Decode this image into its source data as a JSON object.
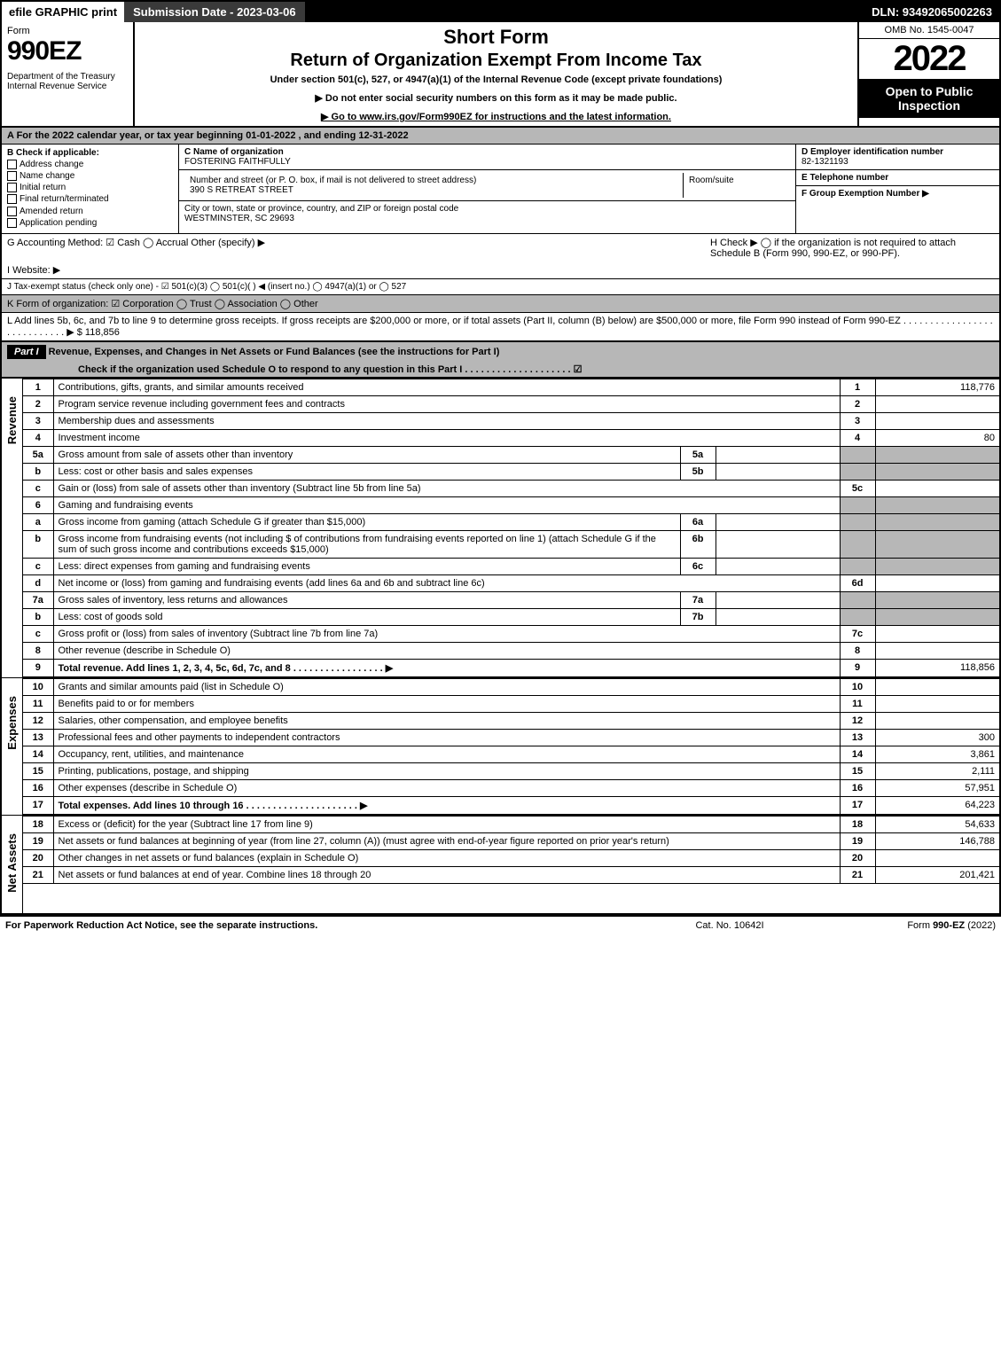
{
  "top": {
    "efile": "efile GRAPHIC print",
    "submission": "Submission Date - 2023-03-06",
    "dln": "DLN: 93492065002263"
  },
  "hdr": {
    "form": "Form",
    "num": "990EZ",
    "dept": "Department of the Treasury\nInternal Revenue Service",
    "short": "Short Form",
    "title": "Return of Organization Exempt From Income Tax",
    "sub": "Under section 501(c), 527, or 4947(a)(1) of the Internal Revenue Code (except private foundations)",
    "note1": "▶ Do not enter social security numbers on this form as it may be made public.",
    "note2": "▶ Go to www.irs.gov/Form990EZ for instructions and the latest information.",
    "omb": "OMB No. 1545-0047",
    "year": "2022",
    "open": "Open to Public Inspection"
  },
  "A": "A  For the 2022 calendar year, or tax year beginning 01-01-2022 , and ending 12-31-2022",
  "B": {
    "label": "B  Check if applicable:",
    "opts": [
      "Address change",
      "Name change",
      "Initial return",
      "Final return/terminated",
      "Amended return",
      "Application pending"
    ]
  },
  "C": {
    "name_lbl": "C Name of organization",
    "name": "FOSTERING FAITHFULLY",
    "street_lbl": "Number and street (or P. O. box, if mail is not delivered to street address)",
    "street": "390 S RETREAT STREET",
    "room_lbl": "Room/suite",
    "city_lbl": "City or town, state or province, country, and ZIP or foreign postal code",
    "city": "WESTMINSTER, SC  29693"
  },
  "D": {
    "ein_lbl": "D Employer identification number",
    "ein": "82-1321193",
    "tel_lbl": "E Telephone number",
    "grp_lbl": "F Group Exemption Number  ▶"
  },
  "G": "G Accounting Method:   ☑ Cash  ◯ Accrual  Other (specify) ▶",
  "H": "H   Check ▶  ◯ if the organization is not required to attach Schedule B (Form 990, 990-EZ, or 990-PF).",
  "I": "I Website: ▶",
  "J": "J Tax-exempt status (check only one) - ☑ 501(c)(3) ◯ 501(c)(  ) ◀ (insert no.) ◯ 4947(a)(1) or ◯ 527",
  "K": "K Form of organization:  ☑ Corporation  ◯ Trust  ◯ Association  ◯ Other",
  "L": "L Add lines 5b, 6c, and 7b to line 9 to determine gross receipts. If gross receipts are $200,000 or more, or if total assets (Part II, column (B) below) are $500,000 or more, file Form 990 instead of Form 990-EZ . . . . . . . . . . . . . . . . . . . . . . . . . . . . ▶ $ 118,856",
  "part1": {
    "bar": "Part I",
    "title": "Revenue, Expenses, and Changes in Net Assets or Fund Balances (see the instructions for Part I)",
    "check": "Check if the organization used Schedule O to respond to any question in this Part I . . . . . . . . . . . . . . . . . . . .  ☑"
  },
  "sections": {
    "revenue": "Revenue",
    "expenses": "Expenses",
    "net": "Net Assets"
  },
  "rows": [
    {
      "n": "1",
      "d": "Contributions, gifts, grants, and similar amounts received",
      "rn": "1",
      "amt": "118,776"
    },
    {
      "n": "2",
      "d": "Program service revenue including government fees and contracts",
      "rn": "2",
      "amt": ""
    },
    {
      "n": "3",
      "d": "Membership dues and assessments",
      "rn": "3",
      "amt": ""
    },
    {
      "n": "4",
      "d": "Investment income",
      "rn": "4",
      "amt": "80"
    },
    {
      "n": "5a",
      "d": "Gross amount from sale of assets other than inventory",
      "mini": "5a",
      "mval": ""
    },
    {
      "n": "b",
      "d": "Less: cost or other basis and sales expenses",
      "mini": "5b",
      "mval": ""
    },
    {
      "n": "c",
      "d": "Gain or (loss) from sale of assets other than inventory (Subtract line 5b from line 5a)",
      "rn": "5c",
      "amt": ""
    },
    {
      "n": "6",
      "d": "Gaming and fundraising events"
    },
    {
      "n": "a",
      "d": "Gross income from gaming (attach Schedule G if greater than $15,000)",
      "mini": "6a",
      "mval": ""
    },
    {
      "n": "b",
      "d": "Gross income from fundraising events (not including $                  of contributions from fundraising events reported on line 1) (attach Schedule G if the sum of such gross income and contributions exceeds $15,000)",
      "mini": "6b",
      "mval": ""
    },
    {
      "n": "c",
      "d": "Less: direct expenses from gaming and fundraising events",
      "mini": "6c",
      "mval": ""
    },
    {
      "n": "d",
      "d": "Net income or (loss) from gaming and fundraising events (add lines 6a and 6b and subtract line 6c)",
      "rn": "6d",
      "amt": ""
    },
    {
      "n": "7a",
      "d": "Gross sales of inventory, less returns and allowances",
      "mini": "7a",
      "mval": ""
    },
    {
      "n": "b",
      "d": "Less: cost of goods sold",
      "mini": "7b",
      "mval": ""
    },
    {
      "n": "c",
      "d": "Gross profit or (loss) from sales of inventory (Subtract line 7b from line 7a)",
      "rn": "7c",
      "amt": ""
    },
    {
      "n": "8",
      "d": "Other revenue (describe in Schedule O)",
      "rn": "8",
      "amt": ""
    },
    {
      "n": "9",
      "d": "Total revenue. Add lines 1, 2, 3, 4, 5c, 6d, 7c, and 8    . . . . . . . . . . . . . . . . .  ▶",
      "rn": "9",
      "amt": "118,856",
      "bold": true
    }
  ],
  "exp": [
    {
      "n": "10",
      "d": "Grants and similar amounts paid (list in Schedule O)",
      "rn": "10",
      "amt": ""
    },
    {
      "n": "11",
      "d": "Benefits paid to or for members",
      "rn": "11",
      "amt": ""
    },
    {
      "n": "12",
      "d": "Salaries, other compensation, and employee benefits",
      "rn": "12",
      "amt": ""
    },
    {
      "n": "13",
      "d": "Professional fees and other payments to independent contractors",
      "rn": "13",
      "amt": "300"
    },
    {
      "n": "14",
      "d": "Occupancy, rent, utilities, and maintenance",
      "rn": "14",
      "amt": "3,861"
    },
    {
      "n": "15",
      "d": "Printing, publications, postage, and shipping",
      "rn": "15",
      "amt": "2,111"
    },
    {
      "n": "16",
      "d": "Other expenses (describe in Schedule O)",
      "rn": "16",
      "amt": "57,951"
    },
    {
      "n": "17",
      "d": "Total expenses. Add lines 10 through 16      . . . . . . . . . . . . . . . . . . . . .  ▶",
      "rn": "17",
      "amt": "64,223",
      "bold": true
    }
  ],
  "net": [
    {
      "n": "18",
      "d": "Excess or (deficit) for the year (Subtract line 17 from line 9)",
      "rn": "18",
      "amt": "54,633"
    },
    {
      "n": "19",
      "d": "Net assets or fund balances at beginning of year (from line 27, column (A)) (must agree with end-of-year figure reported on prior year's return)",
      "rn": "19",
      "amt": "146,788"
    },
    {
      "n": "20",
      "d": "Other changes in net assets or fund balances (explain in Schedule O)",
      "rn": "20",
      "amt": ""
    },
    {
      "n": "21",
      "d": "Net assets or fund balances at end of year. Combine lines 18 through 20",
      "rn": "21",
      "amt": "201,421"
    }
  ],
  "foot": {
    "l": "For Paperwork Reduction Act Notice, see the separate instructions.",
    "c": "Cat. No. 10642I",
    "r": "Form 990-EZ (2022)"
  }
}
